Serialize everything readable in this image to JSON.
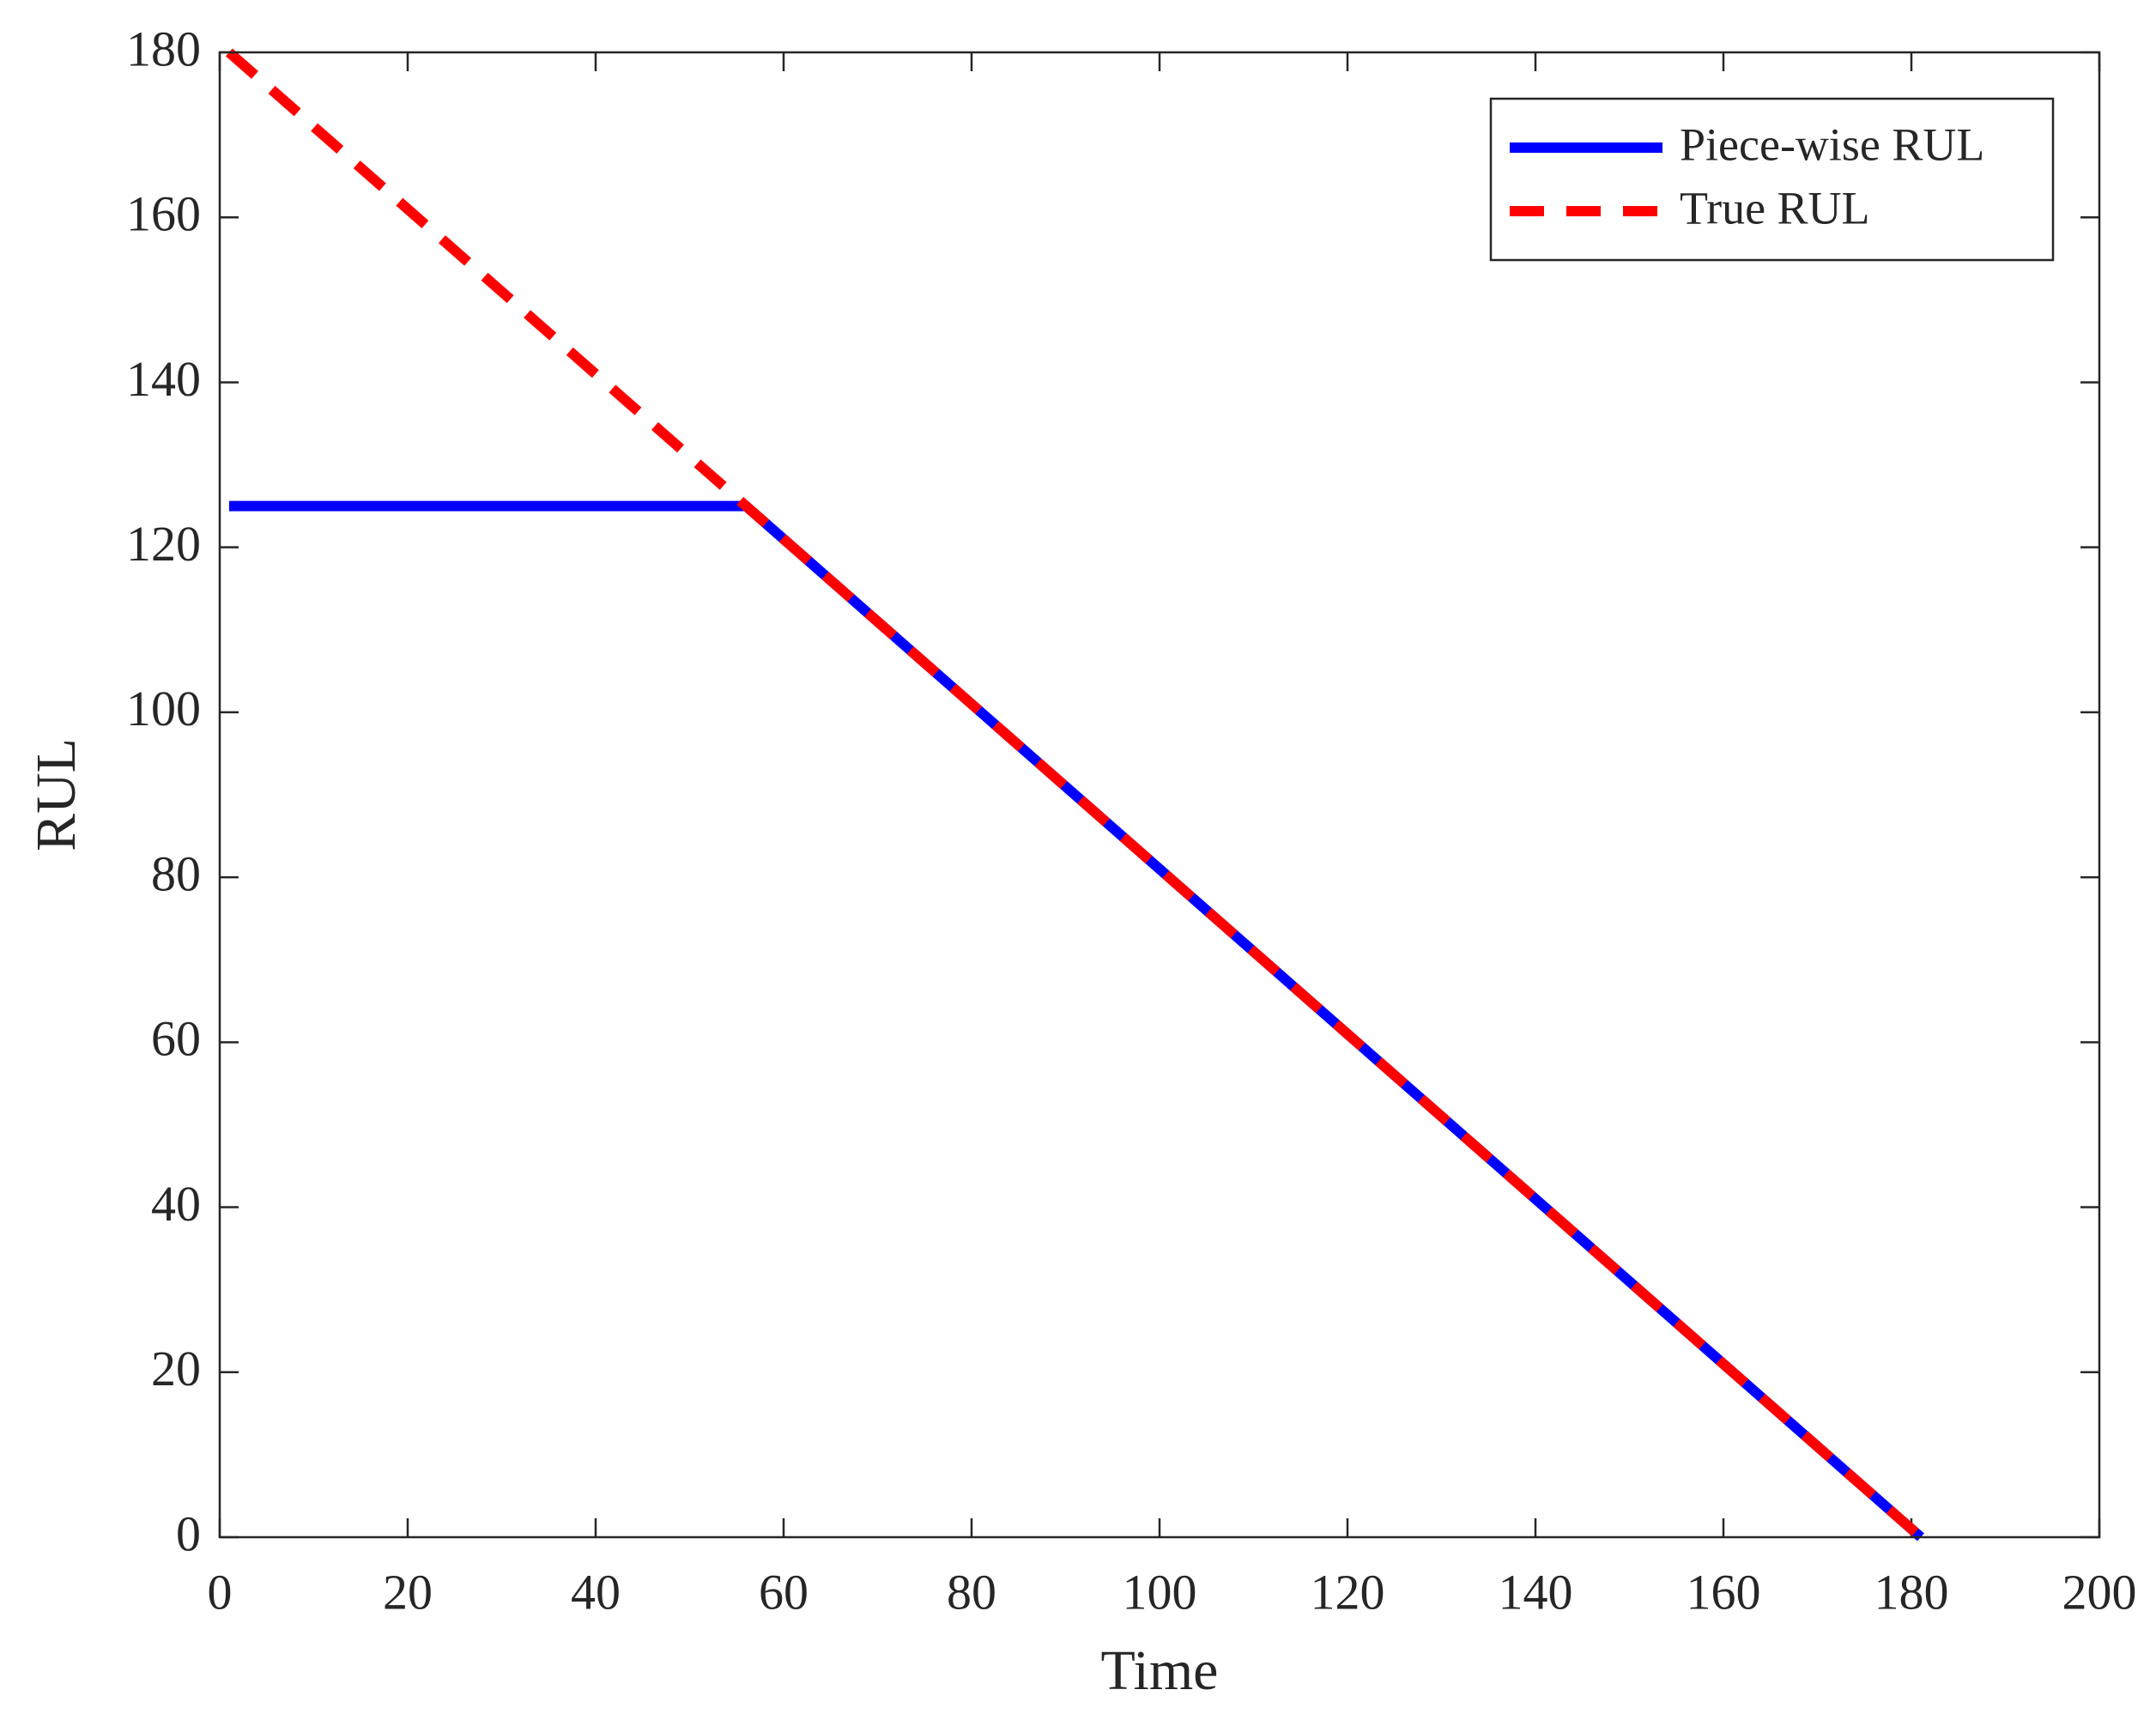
{
  "chart_data": {
    "type": "line",
    "xlabel": "Time",
    "ylabel": "RUL",
    "xlim": [
      0,
      200
    ],
    "xticks": [
      0,
      20,
      40,
      60,
      80,
      100,
      120,
      140,
      160,
      180,
      200
    ],
    "ylim": [
      0,
      180
    ],
    "yticks": [
      0,
      20,
      40,
      60,
      80,
      100,
      120,
      140,
      160,
      180
    ],
    "grid": false,
    "legend": "northeast",
    "series": [
      {
        "name": "Piece-wise RUL",
        "color": "#0000ff",
        "linestyle": "solid",
        "x": [
          1,
          56,
          181
        ],
        "values": [
          125,
          125,
          0
        ]
      },
      {
        "name": "True RUL",
        "color": "#ff0000",
        "linestyle": "dashed",
        "x": [
          1,
          181
        ],
        "values": [
          180,
          0
        ]
      }
    ]
  }
}
